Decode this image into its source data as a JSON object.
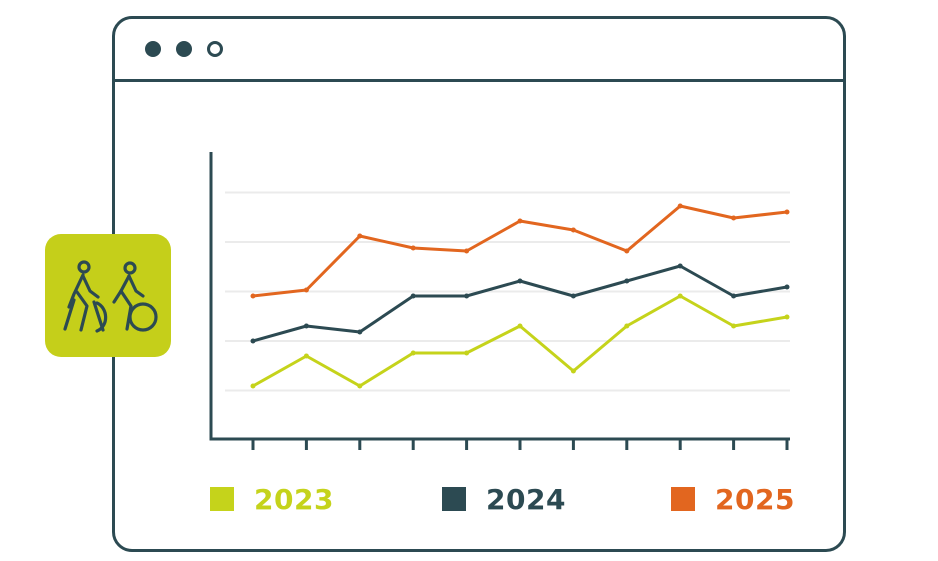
{
  "colors": {
    "frame": "#2c4a52",
    "gridline": "#ebebeb",
    "badge_bg": "#c5cf1a",
    "badge_icon": "#2c4a52"
  },
  "window": {
    "controls": [
      "close",
      "minimize",
      "maximize"
    ]
  },
  "badge": {
    "icon": "tandem-bicycle-icon"
  },
  "chart_data": {
    "type": "line",
    "title": "",
    "xlabel": "",
    "ylabel": "",
    "grid": true,
    "x": [
      1,
      2,
      3,
      4,
      5,
      6,
      7,
      8,
      9,
      10,
      11
    ],
    "ylim": [
      0,
      100
    ],
    "series": [
      {
        "name": "2023",
        "color": "#c5d31b",
        "values": [
          18,
          28,
          18,
          29,
          29,
          38,
          23,
          38,
          48,
          38,
          41
        ]
      },
      {
        "name": "2024",
        "color": "#2c4a52",
        "values": [
          33,
          38,
          36,
          48,
          48,
          53,
          48,
          53,
          58,
          48,
          51
        ]
      },
      {
        "name": "2025",
        "color": "#e2661f",
        "values": [
          48,
          50,
          68,
          64,
          63,
          73,
          70,
          63,
          78,
          74,
          76
        ]
      }
    ]
  }
}
